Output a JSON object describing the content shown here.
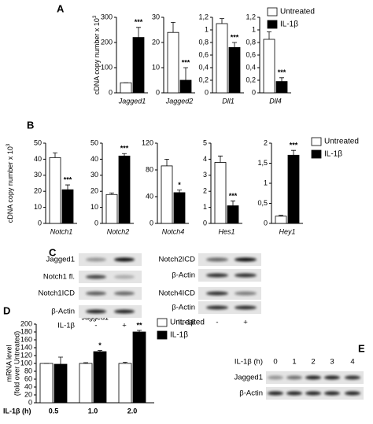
{
  "panels": [
    "A",
    "B",
    "C",
    "D",
    "E"
  ],
  "chart_data": [
    {
      "type": "bar",
      "ylabel": "cDNA copy number x 10",
      "ylabel_sup": "3",
      "categories": [
        "Jagged1"
      ],
      "ylim": [
        0,
        300
      ],
      "yticks": [
        0,
        100,
        200,
        300
      ],
      "sig": "***",
      "series": [
        {
          "name": "Untreated",
          "color": "#ffffff",
          "values": [
            40
          ],
          "errors": [
            0
          ]
        },
        {
          "name": "IL-1β",
          "color": "#000000",
          "values": [
            220
          ],
          "errors": [
            40
          ]
        }
      ]
    },
    {
      "type": "bar",
      "categories": [
        "Jagged2"
      ],
      "ylim": [
        0,
        30
      ],
      "yticks": [
        0,
        10,
        20,
        30
      ],
      "sig": "***",
      "series": [
        {
          "name": "Untreated",
          "color": "#ffffff",
          "values": [
            24
          ],
          "errors": [
            4
          ]
        },
        {
          "name": "IL-1β",
          "color": "#000000",
          "values": [
            5
          ],
          "errors": [
            5
          ]
        }
      ]
    },
    {
      "type": "bar",
      "categories": [
        "Dll1"
      ],
      "ylim": [
        0,
        1.2
      ],
      "yticks": [
        0,
        {
          "value": 0.2,
          "label": "0,2"
        },
        {
          "value": 0.4,
          "label": "0,4"
        },
        {
          "value": 0.6,
          "label": "0,6"
        },
        {
          "value": 0.8,
          "label": "0,8"
        },
        1,
        {
          "value": 1.2,
          "label": "1,2"
        }
      ],
      "sig": "***",
      "series": [
        {
          "name": "Untreated",
          "color": "#ffffff",
          "values": [
            1.1
          ],
          "errors": [
            0.08
          ]
        },
        {
          "name": "IL-1β",
          "color": "#000000",
          "values": [
            0.72
          ],
          "errors": [
            0.08
          ]
        }
      ]
    },
    {
      "type": "bar",
      "categories": [
        "Dll4"
      ],
      "ylim": [
        0,
        1.2
      ],
      "yticks": [
        0,
        {
          "value": 0.2,
          "label": "0,2"
        },
        {
          "value": 0.4,
          "label": "0,4"
        },
        {
          "value": 0.6,
          "label": "0,6"
        },
        {
          "value": 0.8,
          "label": "0,8"
        },
        1,
        {
          "value": 1.2,
          "label": "1,2"
        }
      ],
      "sig": "***",
      "series": [
        {
          "name": "Untreated",
          "color": "#ffffff",
          "values": [
            0.85
          ],
          "errors": [
            0.12
          ]
        },
        {
          "name": "IL-1β",
          "color": "#000000",
          "values": [
            0.18
          ],
          "errors": [
            0.06
          ]
        }
      ]
    },
    {
      "type": "bar",
      "ylabel": "cDNA copy number x 10",
      "ylabel_sup": "3",
      "categories": [
        "Notch1"
      ],
      "ylim": [
        0,
        50
      ],
      "yticks": [
        0,
        10,
        20,
        30,
        40,
        50
      ],
      "sig": "***",
      "series": [
        {
          "name": "Untreated",
          "color": "#ffffff",
          "values": [
            41
          ],
          "errors": [
            3
          ]
        },
        {
          "name": "IL-1β",
          "color": "#000000",
          "values": [
            21
          ],
          "errors": [
            3
          ]
        }
      ]
    },
    {
      "type": "bar",
      "categories": [
        "Notch2"
      ],
      "ylim": [
        0,
        50
      ],
      "yticks": [
        0,
        10,
        20,
        30,
        40,
        50
      ],
      "sig": "***",
      "series": [
        {
          "name": "Untreated",
          "color": "#ffffff",
          "values": [
            18
          ],
          "errors": [
            1
          ]
        },
        {
          "name": "IL-1β",
          "color": "#000000",
          "values": [
            42
          ],
          "errors": [
            1.5
          ]
        }
      ]
    },
    {
      "type": "bar",
      "categories": [
        "Notch4"
      ],
      "ylim": [
        0,
        120
      ],
      "yticks": [
        0,
        40,
        80,
        120
      ],
      "sig": "*",
      "series": [
        {
          "name": "Untreated",
          "color": "#ffffff",
          "values": [
            86
          ],
          "errors": [
            10
          ]
        },
        {
          "name": "IL-1β",
          "color": "#000000",
          "values": [
            46
          ],
          "errors": [
            4
          ]
        }
      ]
    },
    {
      "type": "bar",
      "categories": [
        "Hes1"
      ],
      "ylim": [
        0,
        5
      ],
      "yticks": [
        0,
        1,
        2,
        3,
        4,
        5
      ],
      "sig": "***",
      "series": [
        {
          "name": "Untreated",
          "color": "#ffffff",
          "values": [
            3.8
          ],
          "errors": [
            0.4
          ]
        },
        {
          "name": "IL-1β",
          "color": "#000000",
          "values": [
            1.1
          ],
          "errors": [
            0.3
          ]
        }
      ]
    },
    {
      "type": "bar",
      "categories": [
        "Hey1"
      ],
      "ylim": [
        0,
        2
      ],
      "yticks": [
        0,
        {
          "value": 0.5,
          "label": "0,5"
        },
        1,
        {
          "value": 1.5,
          "label": "1,5"
        },
        2
      ],
      "sig": "***",
      "series": [
        {
          "name": "Untreated",
          "color": "#ffffff",
          "values": [
            0.18
          ],
          "errors": [
            0.02
          ]
        },
        {
          "name": "IL-1β",
          "color": "#000000",
          "values": [
            1.7
          ],
          "errors": [
            0.12
          ]
        }
      ]
    },
    {
      "type": "bar",
      "title": "Jagged1",
      "ylabel": [
        "mRNA level",
        "(fold over Untreated)"
      ],
      "xlabel": "IL-1β (h)",
      "categories": [
        "0.5",
        "1.0",
        "2.0"
      ],
      "ylim": [
        0,
        200
      ],
      "yticks": [
        0,
        20,
        40,
        60,
        80,
        100,
        120,
        140,
        160,
        180,
        200
      ],
      "sig": [
        null,
        "*",
        "**"
      ],
      "series": [
        {
          "name": "Untreated",
          "color": "#ffffff",
          "values": [
            100,
            100,
            100
          ],
          "errors": [
            0,
            2,
            3
          ]
        },
        {
          "name": "IL-1β",
          "color": "#000000",
          "values": [
            98,
            130,
            180
          ],
          "errors": [
            18,
            3,
            4
          ]
        }
      ]
    }
  ],
  "blots": {
    "C": {
      "left_rows": [
        "Jagged1",
        "Notch1 fl.",
        "Notch1ICD",
        "β-Actin"
      ],
      "right_rows": [
        "Notch2ICD",
        "β-Actin",
        "Notch4ICD",
        "β-Actin"
      ],
      "treatment": "IL-1β",
      "lanes": [
        "-",
        "+"
      ]
    },
    "E": {
      "treatment": "IL-1β (h)",
      "lanes": [
        "0",
        "1",
        "2",
        "3",
        "4"
      ],
      "rows": [
        "Jagged1",
        "β-Actin"
      ]
    }
  }
}
